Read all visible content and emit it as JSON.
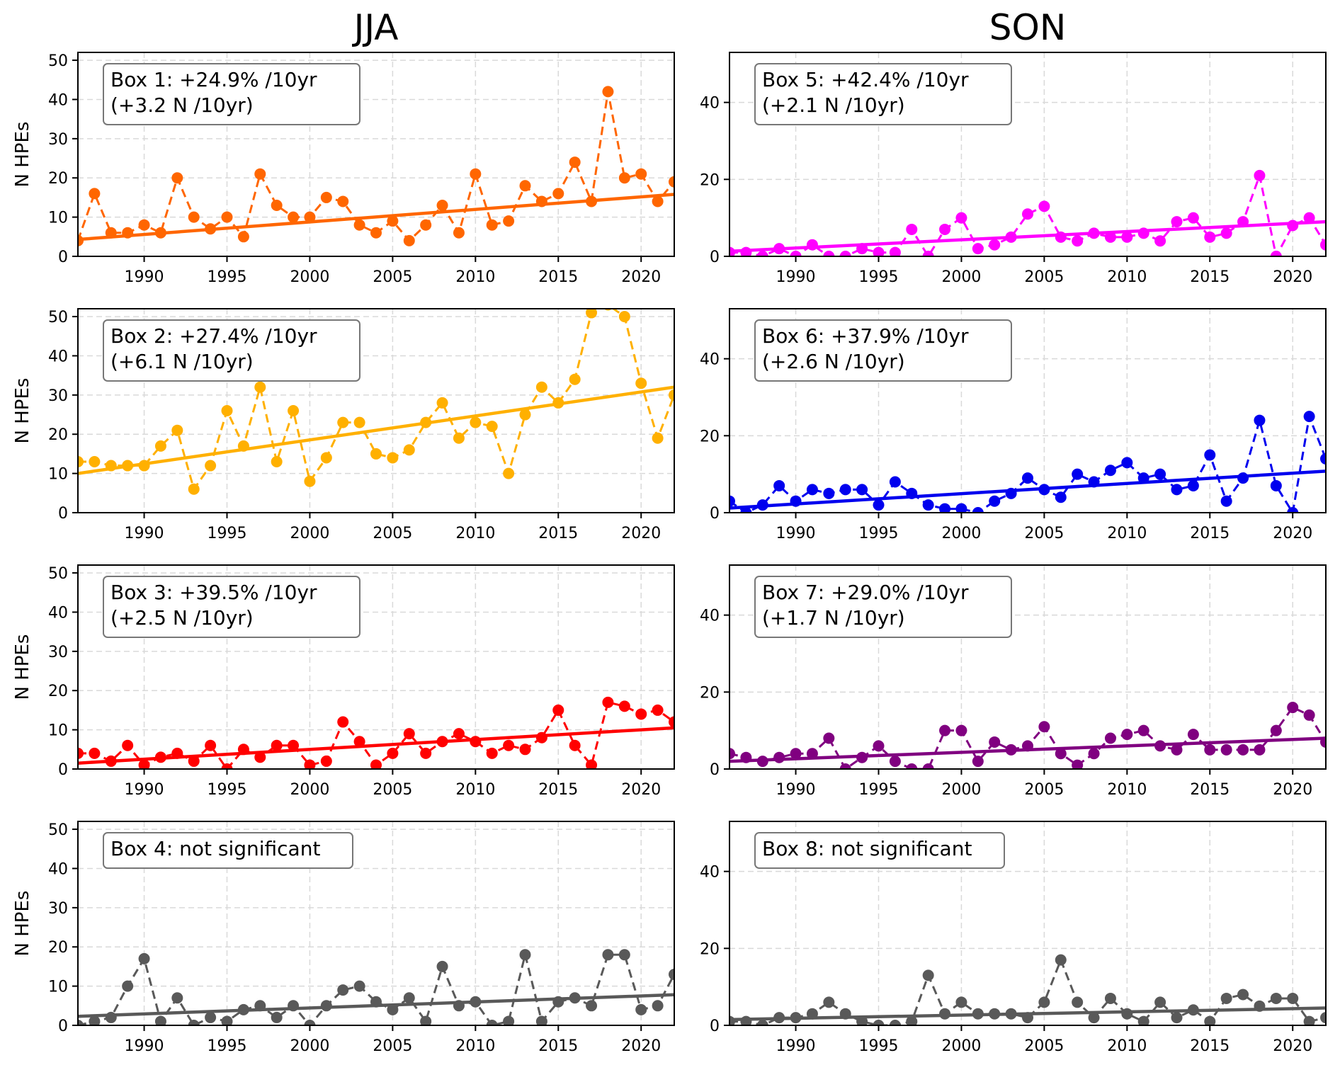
{
  "figure": {
    "columns": [
      "JJA",
      "SON"
    ],
    "ylabel": "N HPEs"
  },
  "chart_data": [
    {
      "type": "line",
      "panel": "Box 1",
      "season": "JJA",
      "title": "",
      "xlabel": "",
      "ylabel": "N HPEs",
      "annotation": [
        "Box 1: +24.9% /10yr",
        " (+3.2 N /10yr)"
      ],
      "color": "#ff6600",
      "xlim": [
        1986,
        2022
      ],
      "ylim": [
        0,
        52
      ],
      "xticks": [
        1990,
        1995,
        2000,
        2005,
        2010,
        2015,
        2020
      ],
      "yticks": [
        0,
        10,
        20,
        30,
        40,
        50
      ],
      "grid": true,
      "x": [
        1986,
        1987,
        1988,
        1989,
        1990,
        1991,
        1992,
        1993,
        1994,
        1995,
        1996,
        1997,
        1998,
        1999,
        2000,
        2001,
        2002,
        2003,
        2004,
        2005,
        2006,
        2007,
        2008,
        2009,
        2010,
        2011,
        2012,
        2013,
        2014,
        2015,
        2016,
        2017,
        2018,
        2019,
        2020,
        2021,
        2022
      ],
      "series": [
        {
          "name": "N HPEs",
          "style": "dashed-markers",
          "values": [
            4,
            16,
            6,
            6,
            8,
            6,
            20,
            10,
            7,
            10,
            5,
            21,
            13,
            10,
            10,
            15,
            14,
            8,
            6,
            9,
            4,
            8,
            13,
            6,
            21,
            8,
            9,
            18,
            14,
            16,
            24,
            14,
            42,
            20,
            21,
            14,
            19
          ]
        },
        {
          "name": "trend",
          "style": "solid",
          "values_endpoints": [
            4.3,
            15.8
          ]
        }
      ]
    },
    {
      "type": "line",
      "panel": "Box 2",
      "season": "JJA",
      "title": "",
      "xlabel": "",
      "ylabel": "N HPEs",
      "annotation": [
        "Box 2: +27.4% /10yr",
        " (+6.1 N /10yr)"
      ],
      "color": "#ffb000",
      "xlim": [
        1986,
        2022
      ],
      "ylim": [
        0,
        52
      ],
      "xticks": [
        1990,
        1995,
        2000,
        2005,
        2010,
        2015,
        2020
      ],
      "yticks": [
        0,
        10,
        20,
        30,
        40,
        50
      ],
      "grid": true,
      "x": [
        1986,
        1987,
        1988,
        1989,
        1990,
        1991,
        1992,
        1993,
        1994,
        1995,
        1996,
        1997,
        1998,
        1999,
        2000,
        2001,
        2002,
        2003,
        2004,
        2005,
        2006,
        2007,
        2008,
        2009,
        2010,
        2011,
        2012,
        2013,
        2014,
        2015,
        2016,
        2017,
        2018,
        2019,
        2020,
        2021,
        2022
      ],
      "series": [
        {
          "name": "N HPEs",
          "style": "dashed-markers",
          "values": [
            13,
            13,
            12,
            12,
            12,
            17,
            21,
            6,
            12,
            26,
            17,
            32,
            13,
            26,
            8,
            14,
            23,
            23,
            15,
            14,
            16,
            23,
            28,
            19,
            23,
            22,
            10,
            25,
            32,
            28,
            34,
            51,
            53,
            50,
            33,
            19,
            30
          ]
        },
        {
          "name": "trend",
          "style": "solid",
          "values_endpoints": [
            10.0,
            32.0
          ]
        }
      ]
    },
    {
      "type": "line",
      "panel": "Box 3",
      "season": "JJA",
      "title": "",
      "xlabel": "",
      "ylabel": "N HPEs",
      "annotation": [
        "Box 3: +39.5% /10yr",
        " (+2.5 N /10yr)"
      ],
      "color": "#ff0000",
      "xlim": [
        1986,
        2022
      ],
      "ylim": [
        0,
        52
      ],
      "xticks": [
        1990,
        1995,
        2000,
        2005,
        2010,
        2015,
        2020
      ],
      "yticks": [
        0,
        10,
        20,
        30,
        40,
        50
      ],
      "grid": true,
      "x": [
        1986,
        1987,
        1988,
        1989,
        1990,
        1991,
        1992,
        1993,
        1994,
        1995,
        1996,
        1997,
        1998,
        1999,
        2000,
        2001,
        2002,
        2003,
        2004,
        2005,
        2006,
        2007,
        2008,
        2009,
        2010,
        2011,
        2012,
        2013,
        2014,
        2015,
        2016,
        2017,
        2018,
        2019,
        2020,
        2021,
        2022
      ],
      "series": [
        {
          "name": "N HPEs",
          "style": "dashed-markers",
          "values": [
            4,
            4,
            2,
            6,
            1,
            3,
            4,
            2,
            6,
            0,
            5,
            3,
            6,
            6,
            1,
            2,
            12,
            7,
            1,
            4,
            9,
            4,
            7,
            9,
            7,
            4,
            6,
            5,
            8,
            15,
            6,
            1,
            17,
            16,
            14,
            15,
            12
          ]
        },
        {
          "name": "trend",
          "style": "solid",
          "values_endpoints": [
            1.5,
            10.5
          ]
        }
      ]
    },
    {
      "type": "line",
      "panel": "Box 4",
      "season": "JJA",
      "title": "",
      "xlabel": "",
      "ylabel": "N HPEs",
      "annotation": [
        "Box 4: not significant"
      ],
      "color": "#595959",
      "xlim": [
        1986,
        2022
      ],
      "ylim": [
        0,
        52
      ],
      "xticks": [
        1990,
        1995,
        2000,
        2005,
        2010,
        2015,
        2020
      ],
      "yticks": [
        0,
        10,
        20,
        30,
        40,
        50
      ],
      "grid": true,
      "x": [
        1986,
        1987,
        1988,
        1989,
        1990,
        1991,
        1992,
        1993,
        1994,
        1995,
        1996,
        1997,
        1998,
        1999,
        2000,
        2001,
        2002,
        2003,
        2004,
        2005,
        2006,
        2007,
        2008,
        2009,
        2010,
        2011,
        2012,
        2013,
        2014,
        2015,
        2016,
        2017,
        2018,
        2019,
        2020,
        2021,
        2022
      ],
      "series": [
        {
          "name": "N HPEs",
          "style": "dashed-markers",
          "values": [
            0,
            1,
            2,
            10,
            17,
            1,
            7,
            0,
            2,
            1,
            4,
            5,
            2,
            5,
            0,
            5,
            9,
            10,
            6,
            4,
            7,
            1,
            15,
            5,
            6,
            0,
            1,
            18,
            1,
            6,
            7,
            5,
            18,
            18,
            4,
            5,
            13
          ]
        },
        {
          "name": "trend",
          "style": "solid",
          "values_endpoints": [
            2.3,
            7.8
          ]
        }
      ]
    },
    {
      "type": "line",
      "panel": "Box 5",
      "season": "SON",
      "title": "",
      "xlabel": "",
      "ylabel": "",
      "annotation": [
        "Box 5: +42.4% /10yr",
        " (+2.1 N /10yr)"
      ],
      "color": "#ff00ff",
      "xlim": [
        1986,
        2022
      ],
      "ylim": [
        0,
        53
      ],
      "xticks": [
        1990,
        1995,
        2000,
        2005,
        2010,
        2015,
        2020
      ],
      "yticks": [
        0,
        20,
        40
      ],
      "grid": true,
      "x": [
        1986,
        1987,
        1988,
        1989,
        1990,
        1991,
        1992,
        1993,
        1994,
        1995,
        1996,
        1997,
        1998,
        1999,
        2000,
        2001,
        2002,
        2003,
        2004,
        2005,
        2006,
        2007,
        2008,
        2009,
        2010,
        2011,
        2012,
        2013,
        2014,
        2015,
        2016,
        2017,
        2018,
        2019,
        2020,
        2021,
        2022
      ],
      "series": [
        {
          "name": "N HPEs",
          "style": "dashed-markers",
          "values": [
            1,
            1,
            0,
            2,
            0,
            3,
            0,
            0,
            2,
            1,
            1,
            7,
            0,
            7,
            10,
            2,
            3,
            5,
            11,
            13,
            5,
            4,
            6,
            5,
            5,
            6,
            4,
            9,
            10,
            5,
            6,
            9,
            21,
            0,
            8,
            10,
            3
          ]
        },
        {
          "name": "trend",
          "style": "solid",
          "values_endpoints": [
            1.3,
            9.0
          ]
        }
      ]
    },
    {
      "type": "line",
      "panel": "Box 6",
      "season": "SON",
      "title": "",
      "xlabel": "",
      "ylabel": "",
      "annotation": [
        "Box 6: +37.9% /10yr",
        " (+2.6 N /10yr)"
      ],
      "color": "#0000ee",
      "xlim": [
        1986,
        2022
      ],
      "ylim": [
        0,
        53
      ],
      "xticks": [
        1990,
        1995,
        2000,
        2005,
        2010,
        2015,
        2020
      ],
      "yticks": [
        0,
        20,
        40
      ],
      "grid": true,
      "x": [
        1986,
        1987,
        1988,
        1989,
        1990,
        1991,
        1992,
        1993,
        1994,
        1995,
        1996,
        1997,
        1998,
        1999,
        2000,
        2001,
        2002,
        2003,
        2004,
        2005,
        2006,
        2007,
        2008,
        2009,
        2010,
        2011,
        2012,
        2013,
        2014,
        2015,
        2016,
        2017,
        2018,
        2019,
        2020,
        2021,
        2022
      ],
      "series": [
        {
          "name": "N HPEs",
          "style": "dashed-markers",
          "values": [
            3,
            0,
            2,
            7,
            3,
            6,
            5,
            6,
            6,
            2,
            8,
            5,
            2,
            1,
            1,
            0,
            3,
            5,
            9,
            6,
            4,
            10,
            8,
            11,
            13,
            9,
            10,
            6,
            7,
            15,
            3,
            9,
            24,
            7,
            0,
            25,
            14
          ]
        },
        {
          "name": "trend",
          "style": "solid",
          "values_endpoints": [
            1.2,
            10.8
          ]
        }
      ]
    },
    {
      "type": "line",
      "panel": "Box 7",
      "season": "SON",
      "title": "",
      "xlabel": "",
      "ylabel": "",
      "annotation": [
        "Box 7: +29.0% /10yr",
        " (+1.7 N /10yr)"
      ],
      "color": "#800080",
      "xlim": [
        1986,
        2022
      ],
      "ylim": [
        0,
        53
      ],
      "xticks": [
        1990,
        1995,
        2000,
        2005,
        2010,
        2015,
        2020
      ],
      "yticks": [
        0,
        20,
        40
      ],
      "grid": true,
      "x": [
        1986,
        1987,
        1988,
        1989,
        1990,
        1991,
        1992,
        1993,
        1994,
        1995,
        1996,
        1997,
        1998,
        1999,
        2000,
        2001,
        2002,
        2003,
        2004,
        2005,
        2006,
        2007,
        2008,
        2009,
        2010,
        2011,
        2012,
        2013,
        2014,
        2015,
        2016,
        2017,
        2018,
        2019,
        2020,
        2021,
        2022
      ],
      "series": [
        {
          "name": "N HPEs",
          "style": "dashed-markers",
          "values": [
            4,
            3,
            2,
            3,
            4,
            4,
            8,
            0,
            3,
            6,
            2,
            0,
            0,
            10,
            10,
            2,
            7,
            5,
            6,
            11,
            4,
            1,
            4,
            8,
            9,
            10,
            6,
            5,
            9,
            5,
            5,
            5,
            5,
            10,
            16,
            14,
            7
          ]
        },
        {
          "name": "trend",
          "style": "solid",
          "values_endpoints": [
            2.0,
            8.0
          ]
        }
      ]
    },
    {
      "type": "line",
      "panel": "Box 8",
      "season": "SON",
      "title": "",
      "xlabel": "",
      "ylabel": "",
      "annotation": [
        "Box 8: not significant"
      ],
      "color": "#595959",
      "xlim": [
        1986,
        2022
      ],
      "ylim": [
        0,
        53
      ],
      "xticks": [
        1990,
        1995,
        2000,
        2005,
        2010,
        2015,
        2020
      ],
      "yticks": [
        0,
        20,
        40
      ],
      "grid": true,
      "x": [
        1986,
        1987,
        1988,
        1989,
        1990,
        1991,
        1992,
        1993,
        1994,
        1995,
        1996,
        1997,
        1998,
        1999,
        2000,
        2001,
        2002,
        2003,
        2004,
        2005,
        2006,
        2007,
        2008,
        2009,
        2010,
        2011,
        2012,
        2013,
        2014,
        2015,
        2016,
        2017,
        2018,
        2019,
        2020,
        2021,
        2022
      ],
      "series": [
        {
          "name": "N HPEs",
          "style": "dashed-markers",
          "values": [
            1,
            1,
            0,
            2,
            2,
            3,
            6,
            3,
            1,
            0,
            0,
            1,
            13,
            3,
            6,
            3,
            3,
            3,
            2,
            6,
            17,
            6,
            2,
            7,
            3,
            1,
            6,
            2,
            4,
            1,
            7,
            8,
            5,
            7,
            7,
            1,
            2
          ]
        },
        {
          "name": "trend",
          "style": "solid",
          "values_endpoints": [
            1.5,
            4.5
          ]
        }
      ]
    }
  ]
}
